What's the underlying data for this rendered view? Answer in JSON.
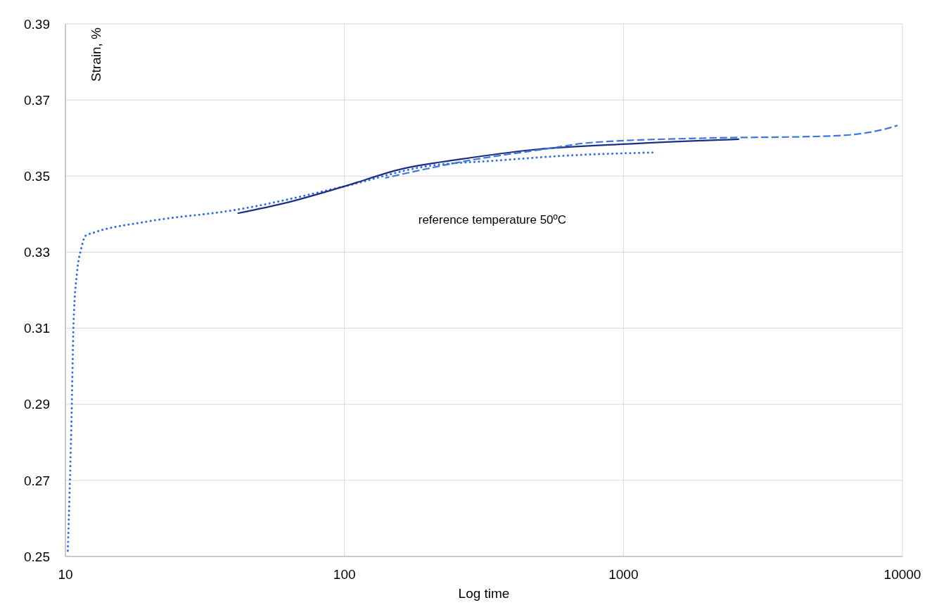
{
  "chart_data": {
    "type": "line",
    "xlabel": "Log time",
    "ylabel": "Strain, %",
    "annotations": [
      "reference temperature 50ºC"
    ],
    "log": "x",
    "grid": true,
    "xlim": [
      10,
      10000
    ],
    "xticks": [
      10,
      100,
      1000,
      10000
    ],
    "ylim": [
      0.25,
      0.39
    ],
    "yticks": [
      0.25,
      0.27,
      0.29,
      0.31,
      0.33,
      0.35,
      0.37,
      0.39
    ],
    "series": [
      {
        "color": "#2f6fe0",
        "line_style": "dotted",
        "x": [
          10.2,
          10.5,
          10.7,
          11.0,
          11.4,
          11.8,
          12.6,
          19.5,
          41.4,
          100,
          198,
          355,
          634,
          1270
        ],
        "values": [
          0.2515,
          0.2838,
          0.3116,
          0.3245,
          0.331,
          0.3343,
          0.3351,
          0.338,
          0.3412,
          0.3473,
          0.3526,
          0.3541,
          0.3554,
          0.3562
        ]
      },
      {
        "color": "#1c2f80",
        "line_style": "solid",
        "x": [
          41.4,
          62,
          100,
          157,
          265,
          472,
          1000,
          2600
        ],
        "values": [
          0.3402,
          0.343,
          0.3473,
          0.3517,
          0.3545,
          0.3569,
          0.3584,
          0.3597
        ]
      },
      {
        "color": "#3a78e0",
        "line_style": "dashed",
        "x": [
          140,
          265,
          570,
          735,
          2005,
          4800,
          6800,
          8700,
          9600
        ],
        "values": [
          0.3495,
          0.3538,
          0.3575,
          0.3587,
          0.36,
          0.3604,
          0.361,
          0.3624,
          0.3633
        ]
      }
    ]
  }
}
